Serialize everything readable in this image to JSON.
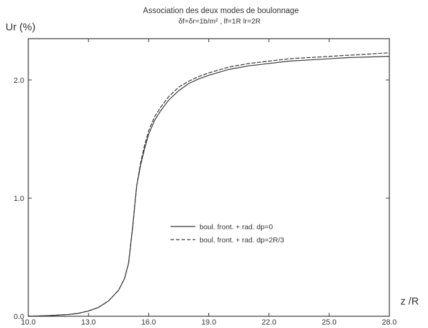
{
  "chart_data": {
    "type": "line",
    "title": "Association des deux modes de boulonnage",
    "subtitle": "δf=δr=1b/m²  ,  lf=1R  lr=2R",
    "ylabel": "Ur (%)",
    "xlabel": "z /R",
    "xlim": [
      10.0,
      28.0
    ],
    "ylim": [
      0.0,
      2.35
    ],
    "x_ticks": [
      "10.0",
      "13.0",
      "16.0",
      "19.0",
      "22.0",
      "25.0",
      "28.0"
    ],
    "y_ticks": [
      "0.0",
      "1.0",
      "2.0"
    ],
    "grid": false,
    "legend_position": "center-right",
    "series": [
      {
        "name": "boul. front. + rad. dp=0",
        "style": "solid",
        "x": [
          10.0,
          11.0,
          12.0,
          12.5,
          13.0,
          13.5,
          14.0,
          14.5,
          14.8,
          15.0,
          15.2,
          15.4,
          15.6,
          15.8,
          16.0,
          16.3,
          16.6,
          17.0,
          17.5,
          18.0,
          18.5,
          19.0,
          20.0,
          21.0,
          22.0,
          23.0,
          24.0,
          25.0,
          26.0,
          27.0,
          28.0
        ],
        "y": [
          0.0,
          0.005,
          0.015,
          0.025,
          0.045,
          0.075,
          0.13,
          0.22,
          0.32,
          0.45,
          0.75,
          1.1,
          1.28,
          1.42,
          1.54,
          1.66,
          1.74,
          1.83,
          1.91,
          1.97,
          2.01,
          2.04,
          2.09,
          2.12,
          2.14,
          2.16,
          2.17,
          2.18,
          2.19,
          2.195,
          2.2
        ]
      },
      {
        "name": "boul. front. + rad. dp=2R/3",
        "style": "dashed",
        "x": [
          10.0,
          11.0,
          12.0,
          12.5,
          13.0,
          13.5,
          14.0,
          14.5,
          14.8,
          15.0,
          15.2,
          15.4,
          15.6,
          15.8,
          16.0,
          16.3,
          16.6,
          17.0,
          17.5,
          18.0,
          18.5,
          19.0,
          20.0,
          21.0,
          22.0,
          23.0,
          24.0,
          25.0,
          26.0,
          27.0,
          28.0
        ],
        "y": [
          0.0,
          0.005,
          0.015,
          0.025,
          0.045,
          0.075,
          0.13,
          0.22,
          0.32,
          0.45,
          0.75,
          1.1,
          1.3,
          1.45,
          1.57,
          1.69,
          1.77,
          1.86,
          1.94,
          1.99,
          2.03,
          2.06,
          2.11,
          2.14,
          2.16,
          2.18,
          2.19,
          2.2,
          2.21,
          2.22,
          2.23
        ]
      }
    ]
  }
}
